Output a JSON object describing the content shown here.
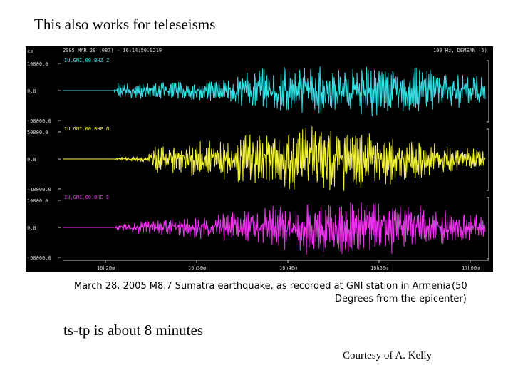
{
  "slide": {
    "title": "This also works for teleseisms",
    "caption_line1a": "March 28, 2005 M8.7 Sumatra earthquake, as recorded at GNI station in Armenia",
    "caption_line1b": "(50",
    "caption_line2": "Degrees from the epicenter)",
    "note": "ts-tp is about 8 minutes",
    "credit": "Courtesy of A. Kelly"
  },
  "seismogram": {
    "header_left": "2005 MAR 28 (087) - 16:14:50.0219",
    "header_right": "100 Hz, DEMEAN (5)",
    "corner_label": "cs",
    "channels": [
      {
        "name": "IU.GNI.00.BHZ Z",
        "color": "#33e0e6",
        "yticks": [
          "10000.0",
          "0.0",
          "-50000.0"
        ]
      },
      {
        "name": "IU.GNI.00.BHE N",
        "color": "#f2f236",
        "yticks": [
          "50000.0",
          "0.0",
          "-10000.0"
        ]
      },
      {
        "name": "IU.GNI.00.BHE E",
        "color": "#ee33ee",
        "yticks": [
          "10000.0",
          "0.0",
          "-50000.0"
        ]
      }
    ],
    "xticks": [
      "16h20m",
      "16h30m",
      "16h40m",
      "16h50m",
      "17h00m"
    ],
    "colors": {
      "background": "#000000",
      "axis": "#c8c8c8",
      "text": "#d8d8d8"
    }
  }
}
